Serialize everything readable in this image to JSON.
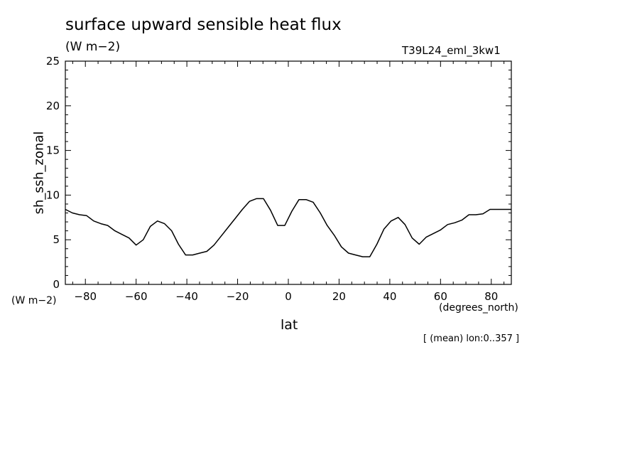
{
  "header": {
    "title": "surface upward sensible heat flux",
    "units": "(W m−2)",
    "run_id": "T39L24_eml_3kw1"
  },
  "axes": {
    "y_units": "(W m−2)",
    "x_units": "(degrees_north)",
    "footnote": "[ (mean) lon:0..357 ]"
  },
  "chart_data": {
    "type": "line",
    "title": "surface upward sensible heat flux",
    "xlabel": "lat",
    "ylabel": "sh_ssh_zonal",
    "xlim": [
      -87.9,
      87.9
    ],
    "ylim": [
      0,
      25
    ],
    "x_ticks": [
      -80,
      -60,
      -40,
      -20,
      0,
      20,
      40,
      60,
      80
    ],
    "x_tick_labels": [
      "−80",
      "−60",
      "−40",
      "−20",
      "0",
      "20",
      "40",
      "60",
      "80"
    ],
    "y_ticks": [
      0,
      5,
      10,
      15,
      20,
      25
    ],
    "y_tick_labels": [
      "0",
      "5",
      "10",
      "15",
      "20",
      "25"
    ],
    "grid": false,
    "series": [
      {
        "x": [
          -87.9,
          -85.1,
          -82.3,
          -79.5,
          -76.7,
          -73.9,
          -71.2,
          -68.4,
          -65.6,
          -62.8,
          -60.0,
          -57.2,
          -54.4,
          -51.6,
          -48.8,
          -46.0,
          -43.3,
          -40.5,
          -37.7,
          -34.9,
          -32.1,
          -29.3,
          -26.5,
          -23.7,
          -20.9,
          -18.1,
          -15.3,
          -12.6,
          -9.8,
          -7.0,
          -4.2,
          -1.4,
          1.4,
          4.2,
          7.0,
          9.8,
          12.6,
          15.3,
          18.1,
          20.9,
          23.7,
          26.5,
          29.3,
          32.1,
          34.9,
          37.7,
          40.5,
          43.3,
          46.0,
          48.8,
          51.6,
          54.4,
          57.2,
          60.0,
          62.8,
          65.6,
          68.4,
          71.2,
          73.9,
          76.7,
          79.5,
          82.3,
          85.1,
          87.9
        ],
        "y": [
          8.4,
          8.0,
          7.8,
          7.7,
          7.1,
          6.8,
          6.6,
          6.0,
          5.6,
          5.2,
          4.4,
          5.0,
          6.5,
          7.1,
          6.8,
          6.0,
          4.5,
          3.3,
          3.3,
          3.5,
          3.7,
          4.4,
          5.4,
          6.4,
          7.4,
          8.4,
          9.3,
          9.6,
          9.6,
          8.3,
          6.6,
          6.6,
          8.2,
          9.5,
          9.5,
          9.2,
          8.0,
          6.6,
          5.5,
          4.2,
          3.5,
          3.3,
          3.1,
          3.1,
          4.5,
          6.2,
          7.1,
          7.5,
          6.7,
          5.2,
          4.5,
          5.3,
          5.7,
          6.1,
          6.7,
          6.9,
          7.2,
          7.8,
          7.8,
          7.9,
          8.4,
          8.4,
          8.4,
          8.4
        ]
      }
    ]
  }
}
